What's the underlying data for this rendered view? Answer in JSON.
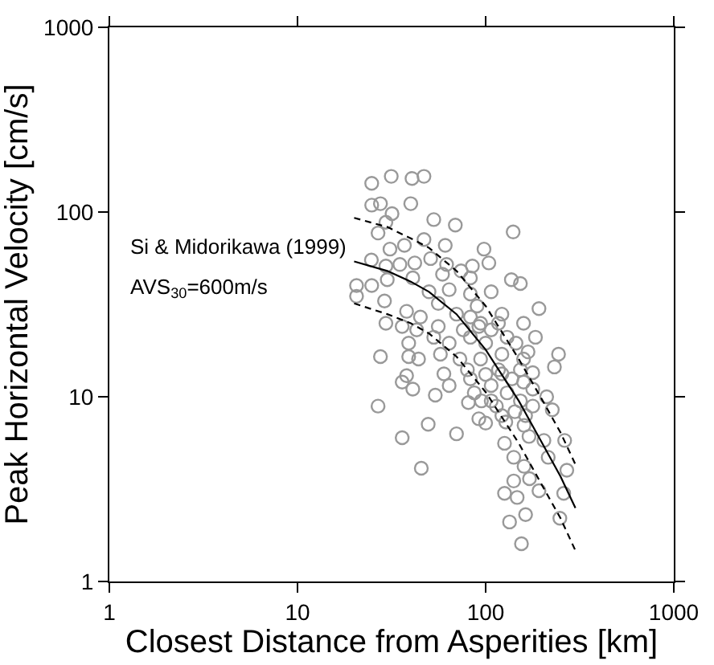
{
  "chart_data": {
    "type": "scatter",
    "xlabel": "Closest Distance from Asperities [km]",
    "ylabel": "Peak Horizontal Velocity [cm/s]",
    "log": "xy",
    "xlim": [
      1,
      1000
    ],
    "ylim": [
      1,
      1000
    ],
    "xticks": [
      1,
      10,
      100,
      1000
    ],
    "yticks": [
      1,
      10,
      100,
      1000
    ],
    "annotations": [
      {
        "text": "Si & Midorikawa (1999)",
        "x": 20,
        "y": 54
      },
      "AVS$_{30}$=600m/s"
    ],
    "series": [
      {
        "marker": "circle",
        "color": "#999999",
        "x": [
          24.8,
          31.5,
          40.6,
          47,
          24.8,
          27.6,
          40,
          31.8,
          29.5,
          26.8,
          53,
          69,
          140,
          37,
          47,
          61,
          98,
          31,
          24.7,
          29.5,
          35,
          42,
          51,
          62,
          74,
          85,
          104,
          20.6,
          20.6,
          24.8,
          30,
          41,
          50,
          64,
          83,
          137,
          153,
          192,
          29,
          38,
          29.5,
          36,
          43,
          56,
          76,
          92,
          117,
          130,
          159,
          184,
          39,
          53,
          64,
          83,
          100,
          27.6,
          39,
          44,
          57.5,
          73,
          94,
          122,
          159,
          244,
          232,
          36,
          38,
          41,
          54,
          64,
          83,
          107,
          138,
          178,
          211,
          26.8,
          49.5,
          70,
          36,
          45.5,
          92,
          81,
          95,
          114,
          128,
          143,
          160,
          170,
          178,
          226,
          263,
          204,
          126,
          141,
          160,
          171,
          141,
          126,
          147,
          192,
          260,
          248,
          270,
          134,
          163,
          155,
          215,
          100,
          87,
          117,
          107,
          130,
          153,
          178,
          80,
          60,
          70,
          90,
          107,
          122,
          145,
          168,
          83,
          107,
          56,
          45,
          59,
          83,
          94,
          122,
          153,
          159,
          122,
          100,
          163
        ],
        "values": [
          143,
          156,
          152,
          156,
          109,
          111,
          111,
          98,
          88,
          77,
          91,
          85,
          78,
          66,
          71,
          66,
          63,
          63,
          55,
          51,
          52,
          53,
          56,
          52,
          48,
          51,
          53,
          40,
          35,
          40,
          43,
          44,
          37,
          38,
          36,
          43,
          41,
          30,
          33,
          29,
          25,
          24,
          23,
          24,
          23,
          24,
          25,
          21,
          25,
          21,
          19.5,
          21,
          19.5,
          21,
          19.5,
          16.5,
          16.5,
          16,
          17,
          16,
          16,
          17,
          16,
          17,
          14.5,
          12,
          13,
          11,
          10.2,
          11.5,
          12.5,
          11.5,
          12.5,
          13.5,
          10,
          8.9,
          7.1,
          6.3,
          6,
          4.1,
          7.6,
          9.3,
          9.5,
          8.9,
          7.3,
          8.3,
          7,
          6.1,
          8.9,
          8.5,
          5.8,
          5.8,
          5.6,
          4.7,
          4.2,
          3.6,
          3.5,
          3.0,
          2.85,
          3.1,
          3.0,
          2.2,
          4.0,
          2.1,
          2.3,
          1.6,
          4.7,
          13.2,
          10.5,
          14,
          9.5,
          10.5,
          9.5,
          11,
          14,
          13.3,
          28,
          31,
          37,
          28,
          19.5,
          17.5,
          27,
          23,
          32,
          27,
          46,
          44,
          25,
          13.3,
          14,
          12,
          7.9,
          7.2,
          7.9
        ]
      },
      {
        "type": "line",
        "color": "#000000",
        "line_style": "solid",
        "x": [
          20,
          30,
          40,
          50,
          70,
          100,
          150,
          200,
          250,
          300
        ],
        "values": [
          54,
          48,
          42,
          37,
          28,
          18,
          9.5,
          5.6,
          3.7,
          2.5
        ]
      },
      {
        "type": "line",
        "color": "#000000",
        "line_style": "dashed",
        "x": [
          20,
          30,
          40,
          50,
          70,
          100,
          150,
          200,
          250,
          300
        ],
        "values": [
          93,
          83,
          72,
          64,
          48,
          31,
          16,
          9.6,
          6.4,
          4.3
        ]
      },
      {
        "type": "line",
        "color": "#000000",
        "line_style": "dashed",
        "x": [
          20,
          30,
          40,
          50,
          70,
          100,
          150,
          200,
          250,
          300
        ],
        "values": [
          32,
          28,
          25,
          22,
          16.5,
          10.6,
          5.6,
          3.3,
          2.2,
          1.47
        ]
      }
    ]
  }
}
